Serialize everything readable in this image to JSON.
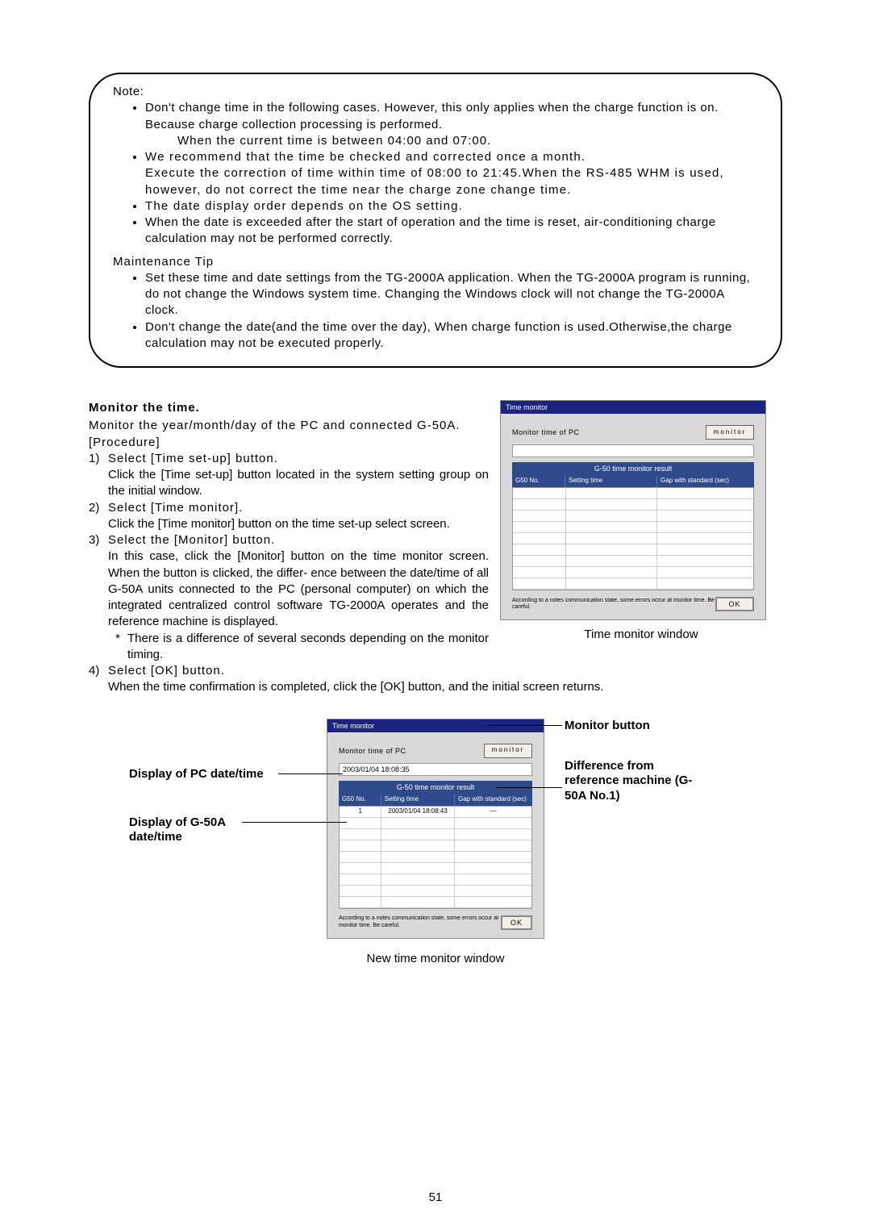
{
  "note": {
    "title": "Note:",
    "bullets": [
      "Don't change time in the following cases. However, this only applies when the charge function is on. Because charge collection processing is performed.",
      "We recommend that the time be checked and corrected once a month.\nExecute the correction of time within time of 08:00 to 21:45.When the RS-485 WHM is used, however, do not correct the time near the charge zone change time.",
      "The date display order depends on the OS setting.",
      "When the date is exceeded after the start of operation and the time is reset, air-conditioning charge calculation may not be performed correctly."
    ],
    "sub_after_b1": "When the current time is between 04:00 and 07:00.",
    "tip_title": "Maintenance Tip",
    "tip_bullets": [
      "Set these time and date settings from the TG-2000A application. When the TG-2000A program is running, do not change the Windows system time. Changing the Windows clock will not change the TG-2000A clock.",
      "Don't change the date(and the time over the day), When charge function is used.Otherwise,the charge calculation may not be executed properly."
    ]
  },
  "monitor": {
    "heading": "Monitor the time.",
    "intro1": "Monitor the year/month/day of the PC and connected G-50A.",
    "intro2": "[Procedure]",
    "steps": {
      "s1_num": "1)",
      "s1_title": "Select [Time set-up] button.",
      "s1_body": "Click the [Time set-up] button located in the system setting group on the initial window.",
      "s2_num": "2)",
      "s2_title": "Select [Time monitor].",
      "s2_body": "Click the [Time monitor] button on the time set-up select screen.",
      "s3_num": "3)",
      "s3_title": "Select the [Monitor] button.",
      "s3_body": "In this case, click the [Monitor] button on the time monitor screen. When the button is clicked, the differ- ence between the date/time of all G-50A units connected to the PC (personal computer) on which the integrated centralized control software TG-2000A operates and the reference machine is displayed.",
      "s3_star": "There is a difference of several seconds depending on the monitor timing.",
      "s4_num": "4)",
      "s4_title": "Select [OK] button.",
      "s4_body": "When the time confirmation is completed, click the [OK] button, and the initial screen returns."
    }
  },
  "fig1": {
    "caption": "Time monitor window",
    "title": "Time monitor",
    "pc_label": "Monitor time of PC",
    "pc_value": "",
    "mon_btn": "monitor",
    "panel2": "G-50 time monitor result",
    "col1": "G50 No.",
    "col2": "Setting time",
    "col3": "Gap with standard (sec)",
    "footer_note": "According to a notes communication state, some errors occur at monitor time. Be careful.",
    "ok": "OK",
    "empty_rows": 9
  },
  "fig2": {
    "caption": "New time monitor window",
    "title": "Time monitor",
    "pc_label": "Monitor time of PC",
    "pc_value": "2003/01/04 18:08:35",
    "mon_btn": "monitor",
    "panel2": "G-50 time monitor result",
    "col1": "G50 No.",
    "col2": "Setting time",
    "col3": "Gap with standard (sec)",
    "row1_c1": "1",
    "row1_c2": "2003/01/04 18:08:43",
    "row1_c3": "—",
    "footer_note": "According to a notes communication state, some errors occur at monitor time. Be careful.",
    "ok": "OK",
    "empty_rows": 8
  },
  "annotations": {
    "a1": "Monitor button",
    "a2": "Difference from reference machine (G-50A No.1)",
    "a3": "Display of PC date/time",
    "a4": "Display of G-50A date/time"
  },
  "page_number": "51"
}
